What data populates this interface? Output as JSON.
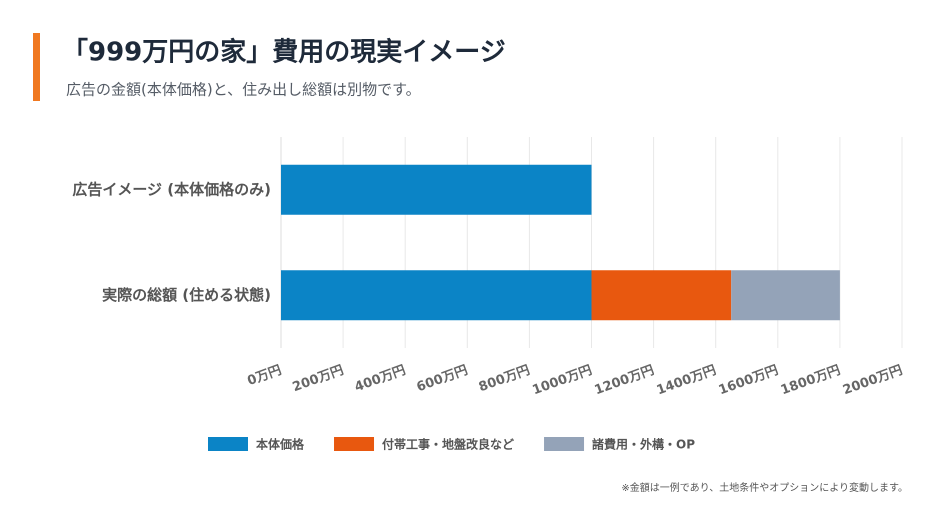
{
  "chart_data": {
    "type": "stacked_bar_horizontal",
    "title": "「999万円の家」費用の現実イメージ",
    "subtitle": "広告の金額(本体価格)と、住み出し総額は別物です。",
    "categories": [
      "広告イメージ (本体価格のみ)",
      "実際の総額 (住める状態)"
    ],
    "series": [
      {
        "name": "本体価格",
        "color": "#0b84c6",
        "values": [
          1000,
          1000
        ]
      },
      {
        "name": "付帯工事・地盤改良など",
        "color": "#e8580f",
        "values": [
          0,
          450
        ]
      },
      {
        "name": "諸費用・外構・OP",
        "color": "#94a3b8",
        "values": [
          0,
          350
        ]
      }
    ],
    "xlim": [
      0,
      2000
    ],
    "xticks": [
      {
        "value": 0,
        "label": "0万円"
      },
      {
        "value": 200,
        "label": "200万円"
      },
      {
        "value": 400,
        "label": "400万円"
      },
      {
        "value": 600,
        "label": "600万円"
      },
      {
        "value": 800,
        "label": "800万円"
      },
      {
        "value": 1000,
        "label": "1000万円"
      },
      {
        "value": 1200,
        "label": "1200万円"
      },
      {
        "value": 1400,
        "label": "1400万円"
      },
      {
        "value": 1600,
        "label": "1600万円"
      },
      {
        "value": 1800,
        "label": "1800万円"
      },
      {
        "value": 2000,
        "label": "2000万円"
      }
    ],
    "grid": true,
    "legend": "bottom",
    "note": "※金額は一例であり、土地条件やオプションにより変動します。"
  }
}
